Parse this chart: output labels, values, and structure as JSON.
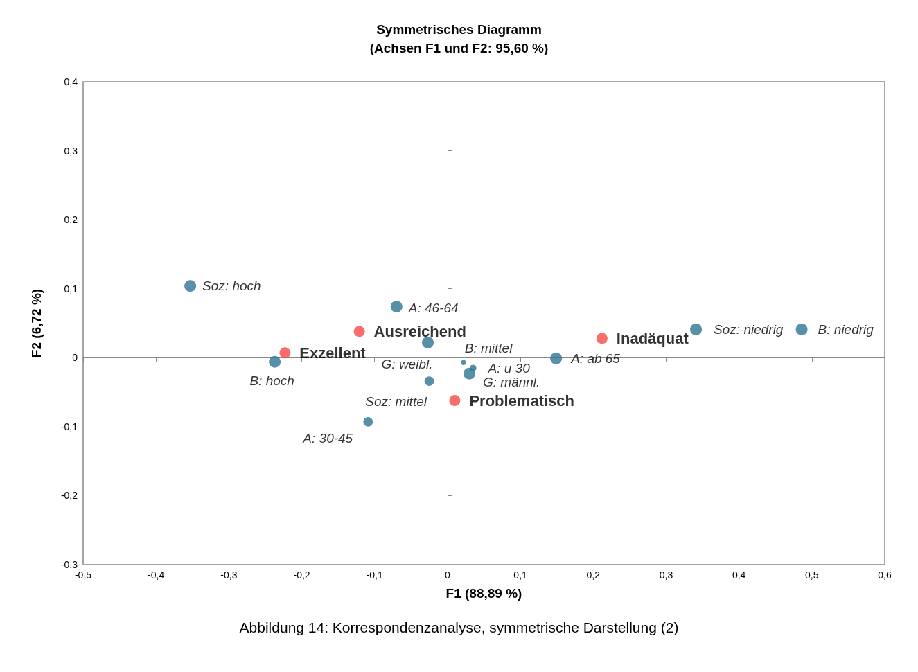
{
  "chart_data": {
    "type": "bubble",
    "title": "Symmetrisches Diagramm",
    "subtitle": "(Achsen F1 und F2: 95,60 %)",
    "xlabel": "F1 (88,89 %)",
    "ylabel": "F2 (6,72 %)",
    "xlim": [
      -0.5,
      0.6
    ],
    "xticks": [
      {
        "value": -0.5,
        "label": "-0,5"
      },
      {
        "value": -0.4,
        "label": "-0,4"
      },
      {
        "value": -0.3,
        "label": "-0,3"
      },
      {
        "value": -0.2,
        "label": "-0,2"
      },
      {
        "value": -0.1,
        "label": "-0,1"
      },
      0,
      {
        "value": 0.1,
        "label": "0,1"
      },
      {
        "value": 0.2,
        "label": "0,2"
      },
      {
        "value": 0.3,
        "label": "0,3"
      },
      {
        "value": 0.4,
        "label": "0,4"
      },
      {
        "value": 0.5,
        "label": "0,5"
      },
      {
        "value": 0.6,
        "label": "0,6"
      }
    ],
    "ylim": [
      -0.3,
      0.4
    ],
    "yticks": [
      {
        "value": -0.3,
        "label": "-0,3"
      },
      {
        "value": -0.2,
        "label": "-0,2"
      },
      {
        "value": -0.1,
        "label": "-0,1"
      },
      0,
      {
        "value": 0.1,
        "label": "0,1"
      },
      {
        "value": 0.2,
        "label": "0,2"
      },
      {
        "value": 0.3,
        "label": "0,3"
      },
      {
        "value": 0.4,
        "label": "0,4"
      }
    ],
    "marker": "circle",
    "series": [
      {
        "color": "#2e7494",
        "x": [
          -0.353,
          -0.07,
          -0.027,
          -0.237,
          -0.025,
          -0.109,
          0.022,
          0.035,
          0.03,
          0.149,
          0.341,
          0.486
        ],
        "values": [
          0.104,
          0.074,
          0.022,
          -0.006,
          -0.034,
          -0.093,
          -0.007,
          -0.015,
          -0.023,
          -0.001,
          0.041,
          0.041
        ],
        "sizes": [
          1,
          1,
          1,
          1,
          0.66,
          0.66,
          0.2,
          0.32,
          1,
          1,
          1,
          1
        ],
        "value_labels": [
          "Soz: hoch",
          "A: 46-64",
          "G: weibl.",
          "B: hoch",
          "Soz: mittel",
          "A: 30-45",
          "B: mittel",
          "A: u 30",
          "G: männl.",
          "A: ab 65",
          "Soz: niedrig",
          "B: niedrig"
        ]
      },
      {
        "color": "#f94848",
        "x": [
          -0.121,
          -0.223,
          0.212,
          0.01
        ],
        "values": [
          0.038,
          0.007,
          0.028,
          -0.062
        ],
        "sizes": [
          0.88,
          0.88,
          0.88,
          0.88
        ],
        "value_labels": [
          "Ausreichend",
          "Exzellent",
          "Inadäquat",
          "Problematisch"
        ]
      }
    ],
    "annotations": [
      "Abbildung 14: Korrespondenzanalyse, symmetrische Darstellung (2)"
    ]
  }
}
